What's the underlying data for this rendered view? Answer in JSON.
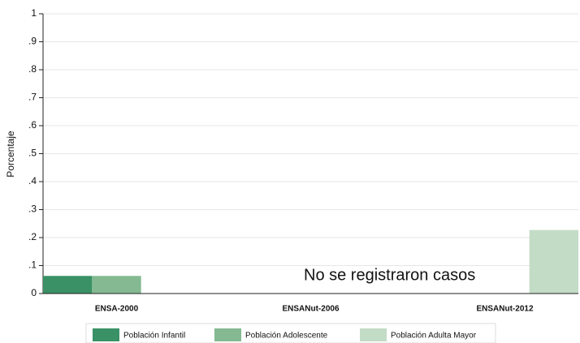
{
  "chart_data": {
    "type": "bar",
    "y_label": "Porcentaje",
    "categories": [
      "ENSA-2000",
      "ENSANut-2006",
      "ENSANut-2012"
    ],
    "series": [
      {
        "name": "Población Infantil",
        "color": "#3a9166",
        "values": [
          0.063,
          0,
          0
        ]
      },
      {
        "name": "Población Adolescente",
        "color": "#84b991",
        "values": [
          0.063,
          0,
          0
        ]
      },
      {
        "name": "Población Adulta Mayor",
        "color": "#c3dcc5",
        "values": [
          0,
          0,
          0.227
        ]
      }
    ],
    "annotation": "No se registraron casos",
    "ylim": [
      0,
      1
    ],
    "yticks": [
      0,
      {
        "value": 0.1,
        "label": ".1"
      },
      {
        "value": 0.2,
        "label": ".2"
      },
      {
        "value": 0.3,
        "label": ".3"
      },
      {
        "value": 0.4,
        "label": ".4"
      },
      {
        "value": 0.5,
        "label": ".5"
      },
      {
        "value": 0.6,
        "label": ".6"
      },
      {
        "value": 0.7,
        "label": ".7"
      },
      {
        "value": 0.8,
        "label": ".8"
      },
      {
        "value": 0.9,
        "label": ".9"
      },
      1
    ],
    "grid": true,
    "legend": "bottom"
  }
}
